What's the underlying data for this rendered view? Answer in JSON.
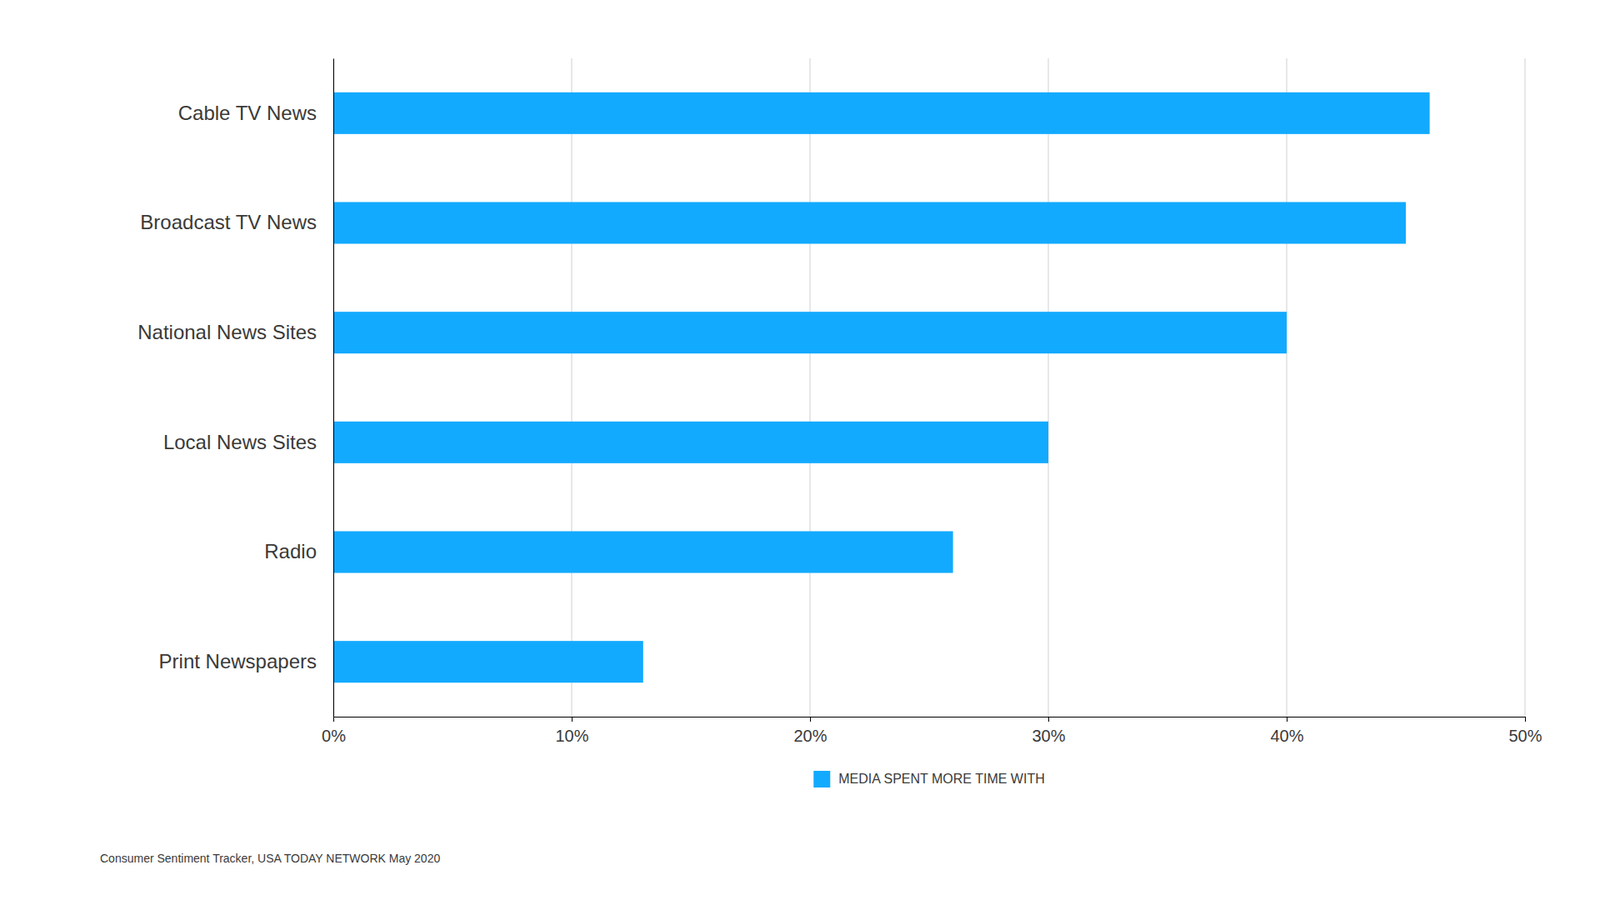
{
  "chart_data": {
    "type": "bar",
    "orientation": "horizontal",
    "categories": [
      "Cable TV News",
      "Broadcast TV News",
      "National News Sites",
      "Local News Sites",
      "Radio",
      "Print Newspapers"
    ],
    "series": [
      {
        "name": "MEDIA SPENT MORE TIME WITH",
        "color": "#12AAFF",
        "values": [
          46,
          45,
          40,
          30,
          26,
          13
        ]
      }
    ],
    "xlim": [
      0,
      50
    ],
    "xticks": [
      {
        "value": 0,
        "label": "0%"
      },
      {
        "value": 10,
        "label": "10%"
      },
      {
        "value": 20,
        "label": "20%"
      },
      {
        "value": 30,
        "label": "30%"
      },
      {
        "value": 40,
        "label": "40%"
      },
      {
        "value": 50,
        "label": "50%"
      }
    ],
    "grid": true,
    "legend": "bottom",
    "annotations": [
      "Consumer Sentiment Tracker, USA TODAY NETWORK May 2020"
    ]
  }
}
